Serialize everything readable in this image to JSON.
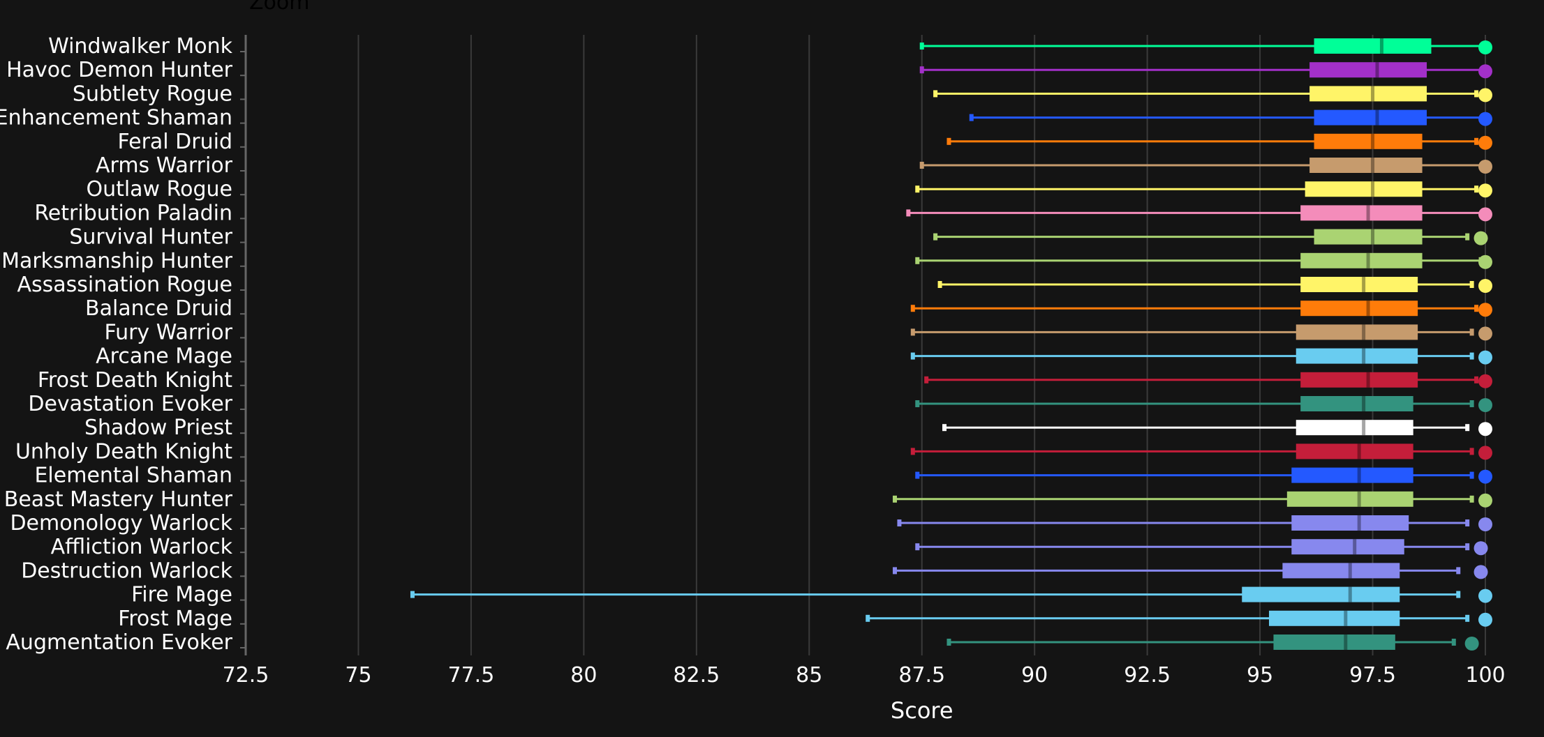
{
  "zoom_label": "Zoom",
  "chart_data": {
    "type": "boxplot",
    "orientation": "horizontal",
    "title": "",
    "xlabel": "Score",
    "ylabel": "",
    "xlim": [
      72.5,
      100
    ],
    "x_ticks": [
      72.5,
      75,
      77.5,
      80,
      82.5,
      85,
      87.5,
      90,
      92.5,
      95,
      97.5,
      100
    ],
    "x_tick_labels": [
      "72.5",
      "75",
      "77.5",
      "80",
      "82.5",
      "85",
      "87.5",
      "90",
      "92.5",
      "95",
      "97.5",
      "100"
    ],
    "grid": "vertical",
    "colors": {
      "background": "#141414",
      "grid": "#3a3a3a",
      "axis": "#666666",
      "text": "#ffffff"
    },
    "series": [
      {
        "name": "Windwalker Monk",
        "color": "#00ff98",
        "min": 87.5,
        "q1": 96.2,
        "median": 97.7,
        "q3": 98.8,
        "max": 100.0,
        "dot": 100.0
      },
      {
        "name": "Havoc Demon Hunter",
        "color": "#a330c9",
        "min": 87.5,
        "q1": 96.1,
        "median": 97.6,
        "q3": 98.7,
        "max": 100.0,
        "dot": 100.0
      },
      {
        "name": "Subtlety Rogue",
        "color": "#fff468",
        "min": 87.8,
        "q1": 96.1,
        "median": 97.5,
        "q3": 98.7,
        "max": 99.8,
        "dot": 100.0
      },
      {
        "name": "Enhancement Shaman",
        "color": "#2459ff",
        "min": 88.6,
        "q1": 96.2,
        "median": 97.6,
        "q3": 98.7,
        "max": 100.0,
        "dot": 100.0
      },
      {
        "name": "Feral Druid",
        "color": "#ff7c0a",
        "min": 88.1,
        "q1": 96.2,
        "median": 97.5,
        "q3": 98.6,
        "max": 99.8,
        "dot": 100.0
      },
      {
        "name": "Arms Warrior",
        "color": "#c69b6d",
        "min": 87.5,
        "q1": 96.1,
        "median": 97.5,
        "q3": 98.6,
        "max": 100.0,
        "dot": 100.0
      },
      {
        "name": "Outlaw Rogue",
        "color": "#fff468",
        "min": 87.4,
        "q1": 96.0,
        "median": 97.5,
        "q3": 98.6,
        "max": 99.8,
        "dot": 100.0
      },
      {
        "name": "Retribution Paladin",
        "color": "#f48cba",
        "min": 87.2,
        "q1": 95.9,
        "median": 97.4,
        "q3": 98.6,
        "max": 100.0,
        "dot": 100.0
      },
      {
        "name": "Survival Hunter",
        "color": "#aad372",
        "min": 87.8,
        "q1": 96.2,
        "median": 97.5,
        "q3": 98.6,
        "max": 99.6,
        "dot": 99.9
      },
      {
        "name": "Marksmanship Hunter",
        "color": "#aad372",
        "min": 87.4,
        "q1": 95.9,
        "median": 97.4,
        "q3": 98.6,
        "max": 99.9,
        "dot": 100.0
      },
      {
        "name": "Assassination Rogue",
        "color": "#fff468",
        "min": 87.9,
        "q1": 95.9,
        "median": 97.3,
        "q3": 98.5,
        "max": 99.7,
        "dot": 100.0
      },
      {
        "name": "Balance Druid",
        "color": "#ff7c0a",
        "min": 87.3,
        "q1": 95.9,
        "median": 97.4,
        "q3": 98.5,
        "max": 99.8,
        "dot": 100.0
      },
      {
        "name": "Fury Warrior",
        "color": "#c69b6d",
        "min": 87.3,
        "q1": 95.8,
        "median": 97.3,
        "q3": 98.5,
        "max": 99.7,
        "dot": 100.0
      },
      {
        "name": "Arcane Mage",
        "color": "#69ccf0",
        "min": 87.3,
        "q1": 95.8,
        "median": 97.3,
        "q3": 98.5,
        "max": 99.7,
        "dot": 100.0
      },
      {
        "name": "Frost Death Knight",
        "color": "#c41e3a",
        "min": 87.6,
        "q1": 95.9,
        "median": 97.4,
        "q3": 98.5,
        "max": 99.8,
        "dot": 100.0
      },
      {
        "name": "Devastation Evoker",
        "color": "#33937f",
        "min": 87.4,
        "q1": 95.9,
        "median": 97.3,
        "q3": 98.4,
        "max": 99.7,
        "dot": 100.0
      },
      {
        "name": "Shadow Priest",
        "color": "#ffffff",
        "min": 88.0,
        "q1": 95.8,
        "median": 97.3,
        "q3": 98.4,
        "max": 99.6,
        "dot": 100.0
      },
      {
        "name": "Unholy Death Knight",
        "color": "#c41e3a",
        "min": 87.3,
        "q1": 95.8,
        "median": 97.2,
        "q3": 98.4,
        "max": 99.7,
        "dot": 100.0
      },
      {
        "name": "Elemental Shaman",
        "color": "#2459ff",
        "min": 87.4,
        "q1": 95.7,
        "median": 97.2,
        "q3": 98.4,
        "max": 99.7,
        "dot": 100.0
      },
      {
        "name": "Beast Mastery Hunter",
        "color": "#aad372",
        "min": 86.9,
        "q1": 95.6,
        "median": 97.2,
        "q3": 98.4,
        "max": 99.7,
        "dot": 100.0
      },
      {
        "name": "Demonology Warlock",
        "color": "#8788ee",
        "min": 87.0,
        "q1": 95.7,
        "median": 97.2,
        "q3": 98.3,
        "max": 99.6,
        "dot": 100.0
      },
      {
        "name": "Affliction Warlock",
        "color": "#8788ee",
        "min": 87.4,
        "q1": 95.7,
        "median": 97.1,
        "q3": 98.2,
        "max": 99.6,
        "dot": 99.9
      },
      {
        "name": "Destruction Warlock",
        "color": "#8788ee",
        "min": 86.9,
        "q1": 95.5,
        "median": 97.0,
        "q3": 98.1,
        "max": 99.4,
        "dot": 99.9
      },
      {
        "name": "Fire Mage",
        "color": "#69ccf0",
        "min": 76.2,
        "q1": 94.6,
        "median": 97.0,
        "q3": 98.1,
        "max": 99.4,
        "dot": 100.0
      },
      {
        "name": "Frost Mage",
        "color": "#69ccf0",
        "min": 86.3,
        "q1": 95.2,
        "median": 96.9,
        "q3": 98.1,
        "max": 99.6,
        "dot": 100.0
      },
      {
        "name": "Augmentation Evoker",
        "color": "#33937f",
        "min": 88.1,
        "q1": 95.3,
        "median": 96.9,
        "q3": 98.0,
        "max": 99.3,
        "dot": 99.7
      }
    ]
  }
}
